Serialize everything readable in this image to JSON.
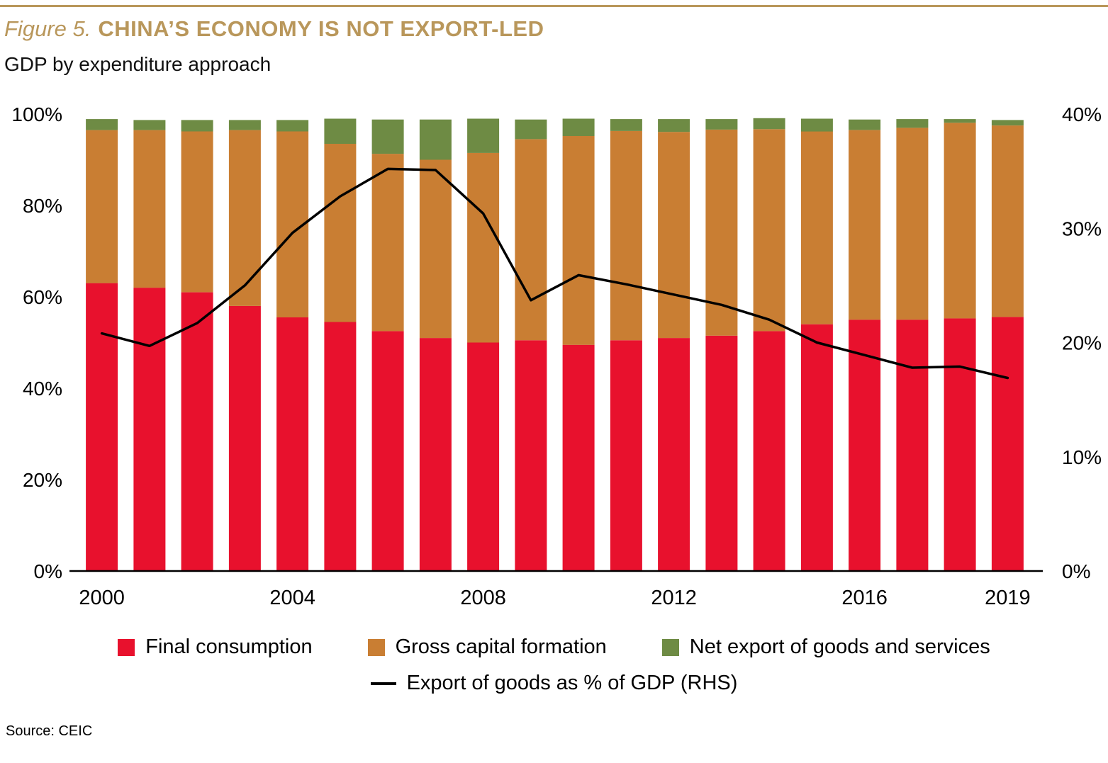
{
  "header": {
    "figure_label": "Figure 5.",
    "title": "CHINA’S ECONOMY IS NOT EXPORT-LED",
    "subtitle": "GDP by expenditure approach"
  },
  "legend": {
    "final_consumption": "Final consumption",
    "gross_capital_formation": "Gross capital formation",
    "net_exports": "Net export of goods and services",
    "exports_line": "Export of goods as % of GDP (RHS)"
  },
  "footer": {
    "source": "Source: CEIC"
  },
  "chart_data": {
    "type": "bar",
    "subtype": "stacked-bar-with-line",
    "title": "CHINA’S ECONOMY IS NOT EXPORT-LED",
    "subtitle": "GDP by expenditure approach",
    "grid": false,
    "legend_position": "bottom",
    "categories": [
      "2000",
      "2001",
      "2002",
      "2003",
      "2004",
      "2005",
      "2006",
      "2007",
      "2008",
      "2009",
      "2010",
      "2011",
      "2012",
      "2013",
      "2014",
      "2015",
      "2016",
      "2017",
      "2018",
      "2019"
    ],
    "series": [
      {
        "key": "final_consumption",
        "name": "Final consumption",
        "axis": "left",
        "values": [
          63,
          62,
          61,
          58,
          55.5,
          54.5,
          52.5,
          51,
          50,
          50.5,
          49.5,
          50.5,
          51,
          51.5,
          52.5,
          54,
          55,
          55,
          55.3,
          55.6
        ]
      },
      {
        "key": "gross_capital_formation",
        "name": "Gross capital formation",
        "axis": "left",
        "values": [
          33.5,
          34.5,
          35.2,
          38.5,
          40.7,
          39.0,
          38.8,
          39.0,
          41.5,
          44.0,
          45.7,
          45.8,
          45.1,
          45.1,
          44.2,
          42.2,
          41.5,
          42.0,
          42.8,
          41.9
        ]
      },
      {
        "key": "net_exports",
        "name": "Net export of goods and services",
        "axis": "left",
        "values": [
          2.4,
          2.2,
          2.5,
          2.2,
          2.5,
          5.5,
          7.5,
          8.8,
          7.5,
          4.3,
          3.8,
          2.6,
          2.8,
          2.3,
          2.4,
          2.8,
          2.3,
          1.9,
          0.8,
          1.2
        ]
      }
    ],
    "line": {
      "key": "exports_line",
      "name": "Export of goods as % of GDP (RHS)",
      "axis": "right",
      "values": [
        20.8,
        19.7,
        21.7,
        25.0,
        29.6,
        32.8,
        35.2,
        35.1,
        31.3,
        23.7,
        25.9,
        25.1,
        24.2,
        23.3,
        22.0,
        20.0,
        18.9,
        17.8,
        17.9,
        16.9
      ]
    },
    "left_axis": {
      "max": 100,
      "min": 0,
      "ticks": [
        {
          "value": 100,
          "label": "100%"
        },
        {
          "value": 80,
          "label": "80%"
        },
        {
          "value": 60,
          "label": "60%"
        },
        {
          "value": 40,
          "label": "40%"
        },
        {
          "value": 20,
          "label": "20%"
        },
        {
          "value": 0,
          "label": "0%"
        }
      ]
    },
    "right_axis": {
      "max": 40,
      "min": 0,
      "ticks": [
        {
          "value": 40,
          "label": "40%"
        },
        {
          "value": 30,
          "label": "30%"
        },
        {
          "value": 20,
          "label": "20%"
        },
        {
          "value": 10,
          "label": "10%"
        },
        {
          "value": 0,
          "label": "0%"
        }
      ]
    },
    "x_ticks": [
      {
        "index": 0,
        "label": "2000"
      },
      {
        "index": 4,
        "label": "2004"
      },
      {
        "index": 8,
        "label": "2008"
      },
      {
        "index": 12,
        "label": "2012"
      },
      {
        "index": 16,
        "label": "2016"
      },
      {
        "index": 19,
        "label": "2019"
      }
    ],
    "colors": {
      "final_consumption": "#E8112D",
      "gross_capital_formation": "#C97E33",
      "net_exports": "#6E8B44",
      "exports_line": "#000000",
      "accent_gold": "#B9975B",
      "axis_line": "#000000"
    }
  }
}
